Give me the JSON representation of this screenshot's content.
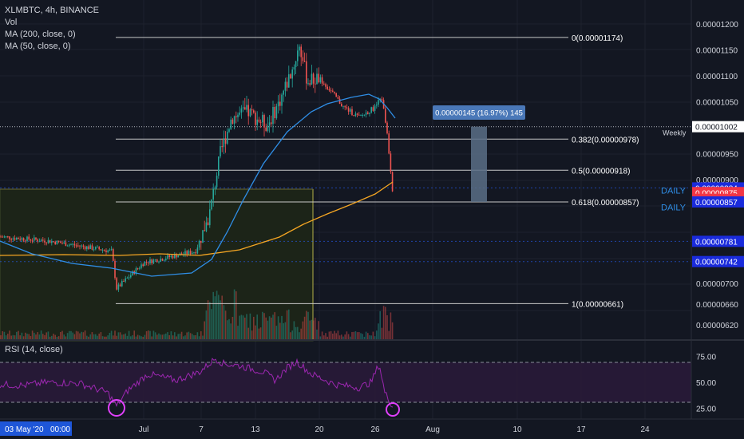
{
  "header": {
    "symbol_line": "XLMBTC, 4h, BINANCE",
    "vol_label": "Vol",
    "ma200_label": "MA (200, close, 0)",
    "ma50_label": "MA (50, close, 0)"
  },
  "rsi_panel": {
    "label": "RSI (14, close)",
    "ticks": [
      "75.00",
      "50.00",
      "25.00"
    ],
    "upper_band": 70,
    "lower_band": 30
  },
  "colors": {
    "background": "#131722",
    "grid": "#1e222d",
    "up_candle": "#26a69a",
    "down_candle": "#ef5350",
    "ma200": "#f5a623",
    "ma50": "#2f8ee6",
    "rsi_line": "#9c27b0",
    "rsi_band": "#2a1a3a",
    "price_tag_blue": "#1a2bdc",
    "price_tag_red": "#f23645",
    "measure_box": "#5b6e86",
    "circle_marker": "#e040fb"
  },
  "chart_data": {
    "type": "candlestick",
    "symbol": "XLMBTC",
    "timeframe": "4h",
    "exchange": "BINANCE",
    "price_axis": {
      "ticks": [
        "0.00001200",
        "0.00001150",
        "0.00001100",
        "0.00001050",
        "0.00000950",
        "0.00000900",
        "0.00000700",
        "0.00000660",
        "0.00000620"
      ],
      "ylim": [
        6.1e-06,
        1.23e-05
      ]
    },
    "time_axis": {
      "ticks": [
        "Jul",
        "7",
        "13",
        "20",
        "26",
        "Aug",
        "10",
        "17",
        "24"
      ],
      "cursor_label": "03 May '20   00:00"
    },
    "fibonacci_levels": [
      {
        "label": "0(0.00001174)",
        "value": 1.174e-05
      },
      {
        "label": "0.382(0.00000978)",
        "value": 9.78e-06
      },
      {
        "label": "0.5(0.00000918)",
        "value": 9.18e-06
      },
      {
        "label": "0.618(0.00000857)",
        "value": 8.57e-06
      },
      {
        "label": "1(0.00000661)",
        "value": 6.61e-06
      }
    ],
    "horizontal_lines": [
      {
        "label": "Weekly",
        "price_tag": "0.00001002",
        "value": 1.002e-05
      }
    ],
    "price_tags": [
      {
        "text": "0.00000884",
        "value": 8.84e-06,
        "color": "blue"
      },
      {
        "text": "0.00000875",
        "value": 8.75e-06,
        "color": "red"
      },
      {
        "text": "03:22:38",
        "value": 8.62e-06,
        "color": "red"
      },
      {
        "text": "0.00000857",
        "value": 8.57e-06,
        "color": "blue"
      },
      {
        "text": "0.00000781",
        "value": 7.81e-06,
        "color": "blue"
      },
      {
        "text": "0.00000742",
        "value": 7.42e-06,
        "color": "blue"
      }
    ],
    "side_labels": [
      {
        "text": "DAILY",
        "value": 8.79e-06
      },
      {
        "text": "DAILY",
        "value": 8.47e-06
      }
    ],
    "measure": {
      "label": "0.00000145 (16.97%) 145",
      "from": 8.57e-06,
      "to": 1.002e-05
    }
  }
}
